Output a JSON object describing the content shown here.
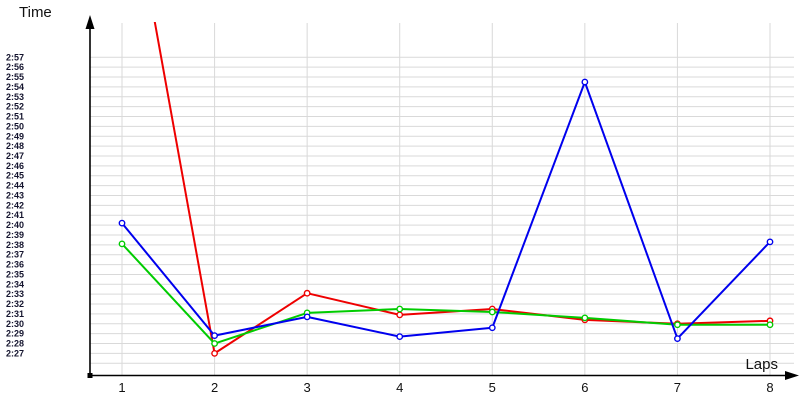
{
  "page": {
    "background_color": "#ffffff"
  },
  "style": {
    "grid_color": "#d9d9d9",
    "axis_color": "#000000",
    "marker_fill": "#ffffff"
  },
  "chart_data": {
    "type": "line",
    "title": "",
    "xlabel": "Laps",
    "ylabel": "Time",
    "legend": "none",
    "grid": true,
    "x": [
      1,
      2,
      3,
      4,
      5,
      6,
      7,
      8
    ],
    "x_tick_labels": [
      "1",
      "2",
      "3",
      "4",
      "5",
      "6",
      "7",
      "8"
    ],
    "y_tick_labels": [
      "2:57",
      "2:56",
      "2:55",
      "2:54",
      "2:53",
      "2:52",
      "2:51",
      "2:50",
      "2:49",
      "2:48",
      "2:47",
      "2:46",
      "2:45",
      "2:44",
      "2:43",
      "2:42",
      "2:41",
      "2:40",
      "2:39",
      "2:38",
      "2:37",
      "2:36",
      "2:35",
      "2:34",
      "2:33",
      "2:32",
      "2:31",
      "2:30",
      "2:29",
      "2:28",
      "2:27"
    ],
    "y_axis_visible_range_seconds": [
      146,
      177
    ],
    "series": [
      {
        "name": "red",
        "color": "#ee0000",
        "values_seconds": [
          199.0,
          147.0,
          153.1,
          150.9,
          151.5,
          150.4,
          150.0,
          150.3
        ],
        "values_display": [
          "off-scale (~3:19, clipped at top)",
          "2:27.0",
          "2:33.1",
          "2:30.9",
          "2:31.5",
          "2:30.4",
          "2:30.0",
          "2:30.3"
        ],
        "note": "lap 1 point lies above the charted range; the line enters from the top edge of the plot"
      },
      {
        "name": "green",
        "color": "#00cc00",
        "values_seconds": [
          158.1,
          148.0,
          151.1,
          151.5,
          151.2,
          150.6,
          149.9,
          149.9
        ],
        "values_display": [
          "2:38.1",
          "2:28.0",
          "2:31.1",
          "2:31.5",
          "2:31.2",
          "2:30.6",
          "2:29.9",
          "2:29.9"
        ]
      },
      {
        "name": "blue",
        "color": "#0000ee",
        "values_seconds": [
          160.2,
          148.8,
          150.7,
          148.7,
          149.6,
          174.5,
          148.5,
          158.3
        ],
        "values_display": [
          "2:40.2",
          "2:28.8",
          "2:30.7",
          "2:28.7",
          "2:29.6",
          "2:54.5",
          "2:28.5",
          "2:38.3"
        ]
      }
    ]
  }
}
